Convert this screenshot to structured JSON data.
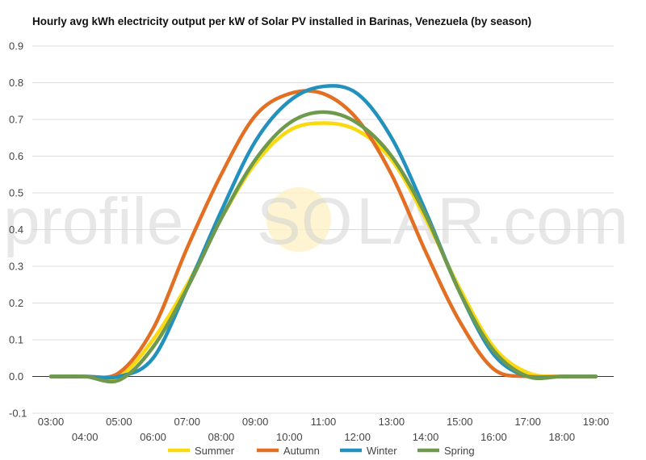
{
  "chart_data": {
    "type": "line",
    "title": "Hourly avg kWh electricity output per kW of Solar PV installed in Barinas, Venezuela (by season)",
    "xlabel": "",
    "ylabel": "",
    "ylim": [
      -0.1,
      0.9
    ],
    "y_ticks": [
      "-0.1",
      "0.0",
      "0.1",
      "0.2",
      "0.3",
      "0.4",
      "0.5",
      "0.6",
      "0.7",
      "0.8",
      "0.9"
    ],
    "x": [
      "03:00",
      "04:00",
      "05:00",
      "06:00",
      "07:00",
      "08:00",
      "09:00",
      "10:00",
      "11:00",
      "12:00",
      "13:00",
      "14:00",
      "15:00",
      "16:00",
      "17:00",
      "18:00",
      "19:00"
    ],
    "grid": true,
    "legend_position": "bottom",
    "series": [
      {
        "name": "Summer",
        "color": "#f9d90f",
        "values": [
          0.0,
          0.0,
          0.0,
          0.1,
          0.25,
          0.43,
          0.58,
          0.67,
          0.69,
          0.67,
          0.59,
          0.43,
          0.24,
          0.08,
          0.01,
          0.0,
          0.0
        ]
      },
      {
        "name": "Autumn",
        "color": "#e26f22",
        "values": [
          0.0,
          0.0,
          0.01,
          0.13,
          0.35,
          0.55,
          0.71,
          0.77,
          0.77,
          0.7,
          0.55,
          0.34,
          0.15,
          0.02,
          0.0,
          0.0,
          0.0
        ]
      },
      {
        "name": "Winter",
        "color": "#2391bd",
        "values": [
          0.0,
          0.0,
          0.0,
          0.05,
          0.24,
          0.45,
          0.64,
          0.75,
          0.79,
          0.77,
          0.65,
          0.45,
          0.23,
          0.06,
          0.0,
          0.0,
          0.0
        ]
      },
      {
        "name": "Spring",
        "color": "#6f9a4d",
        "values": [
          0.0,
          0.0,
          -0.01,
          0.08,
          0.24,
          0.43,
          0.59,
          0.69,
          0.72,
          0.69,
          0.6,
          0.44,
          0.23,
          0.07,
          0.0,
          0.0,
          0.0
        ]
      }
    ]
  },
  "watermark": {
    "left": "profile",
    "sun": "SO",
    "right": "LAR.com"
  }
}
